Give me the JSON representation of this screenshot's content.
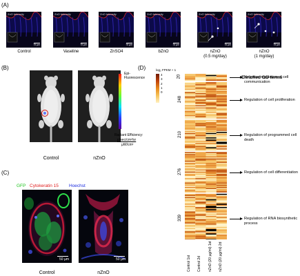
{
  "panel_a": {
    "letter": "(A)",
    "tile_title": "ZnO Intensity",
    "tiles": [
      {
        "label": "Control",
        "scale": "75 µm"
      },
      {
        "label": "Vaseline",
        "scale": "75 µm"
      },
      {
        "label": "ZnSO4",
        "scale": "75 µm"
      },
      {
        "label": "bZnO",
        "scale": "75 µm"
      },
      {
        "label": "nZnO\n(0.5 mg/day)",
        "scale": "75 µm"
      },
      {
        "label": "nZnO\n(1 mg/day)",
        "scale": "75 µm"
      }
    ]
  },
  "panel_b": {
    "letter": "(B)",
    "labels": [
      "Control",
      "nZnO"
    ],
    "colorbar_top": "Epi-\nFluorescence",
    "colorbar_bottom": "Radiant Efficiency:",
    "colorbar_units": "p/sec/cm²/sr",
    "colorbar_units2": "µW/cm²"
  },
  "panel_c": {
    "letter": "(C)",
    "stains": {
      "gfp": "GFP",
      "ck15": "Cytokeratin 15",
      "hoechst": "Hoechst"
    },
    "colors": {
      "gfp": "#1fc41f",
      "ck15": "#e01b1b",
      "hoechst": "#1b2ce0"
    },
    "images": [
      {
        "label": "Control",
        "scale": "50 µm"
      },
      {
        "label": "nZnO",
        "scale": "50 µm"
      }
    ]
  },
  "panel_d": {
    "letter": "(D)",
    "go_title": "Enriched GO terms",
    "colorbar_title": "log₂ FPKM + 1",
    "colorbar_ticks": [
      "4",
      "3",
      "2",
      "1",
      "0"
    ],
    "clusters": [
      {
        "size": "20",
        "term": "Negative regulation of cell communication"
      },
      {
        "size": "248",
        "term": "Regulation of cell proliferation"
      },
      {
        "size": "210",
        "term": "Regulation of programmed cell death"
      },
      {
        "size": "276",
        "term": "Regulation of cell differentiation"
      },
      {
        "size": "339",
        "term": "Regulation of RNA biosynthetic process"
      }
    ],
    "columns": [
      "Control 1st",
      "Control 2d",
      "nZnO (20 µg/ml) 1st",
      "nZnO (20 µg/ml) 2d"
    ]
  }
}
